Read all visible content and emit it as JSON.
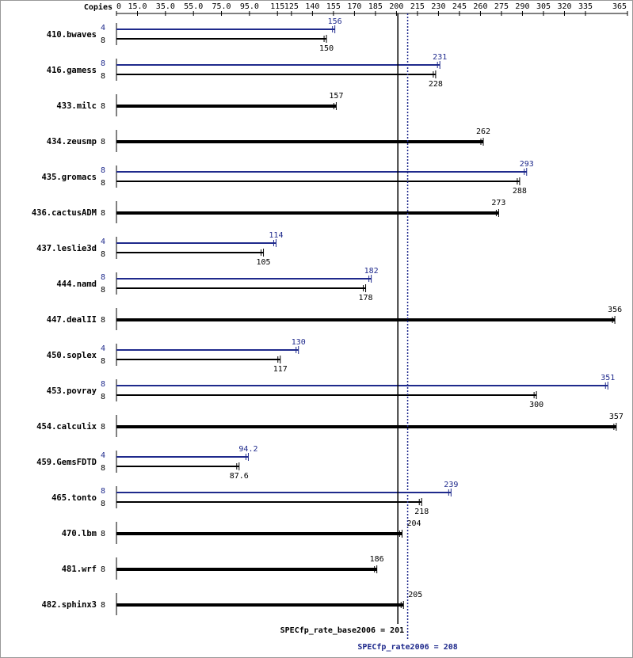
{
  "chart_data": {
    "type": "bar",
    "copies_header": "Copies",
    "categories": [
      "410.bwaves",
      "416.gamess",
      "433.milc",
      "434.zeusmp",
      "435.gromacs",
      "436.cactusADM",
      "437.leslie3d",
      "444.namd",
      "447.dealII",
      "450.soplex",
      "453.povray",
      "454.calculix",
      "459.GemsFDTD",
      "465.tonto",
      "470.lbm",
      "481.wrf",
      "482.sphinx3"
    ],
    "series": [
      {
        "color": "#000000",
        "copies": [
          8,
          8,
          8,
          8,
          8,
          8,
          8,
          8,
          8,
          8,
          8,
          8,
          8,
          8,
          8,
          8,
          8
        ],
        "values": [
          150,
          228,
          157,
          262,
          288,
          273,
          105,
          178,
          356,
          117,
          300,
          357,
          87.6,
          218,
          204,
          186,
          205
        ]
      },
      {
        "color": "#1f2a8c",
        "copies": [
          4,
          8,
          null,
          null,
          8,
          null,
          4,
          8,
          null,
          4,
          8,
          null,
          4,
          8,
          null,
          null,
          null
        ],
        "values": [
          156,
          231,
          null,
          null,
          293,
          null,
          114,
          182,
          null,
          130,
          351,
          null,
          94.2,
          239,
          null,
          null,
          null
        ]
      }
    ],
    "xlim": [
      0,
      365
    ],
    "xticks": [
      0,
      {
        "value": 15,
        "label": "15.0"
      },
      {
        "value": 35,
        "label": "35.0"
      },
      {
        "value": 55,
        "label": "55.0"
      },
      {
        "value": 75,
        "label": "75.0"
      },
      {
        "value": 95,
        "label": "95.0"
      },
      115,
      125,
      140,
      155,
      170,
      185,
      200,
      215,
      230,
      245,
      260,
      275,
      290,
      305,
      320,
      335,
      365
    ],
    "reference_lines": [
      {
        "value": 201,
        "label": "SPECfp_rate_base2006 = 201",
        "color": "#000000",
        "style": "solid"
      },
      {
        "value": 208,
        "label": "SPECfp_rate2006 = 208",
        "color": "#1f2a8c",
        "style": "dotted"
      }
    ]
  }
}
